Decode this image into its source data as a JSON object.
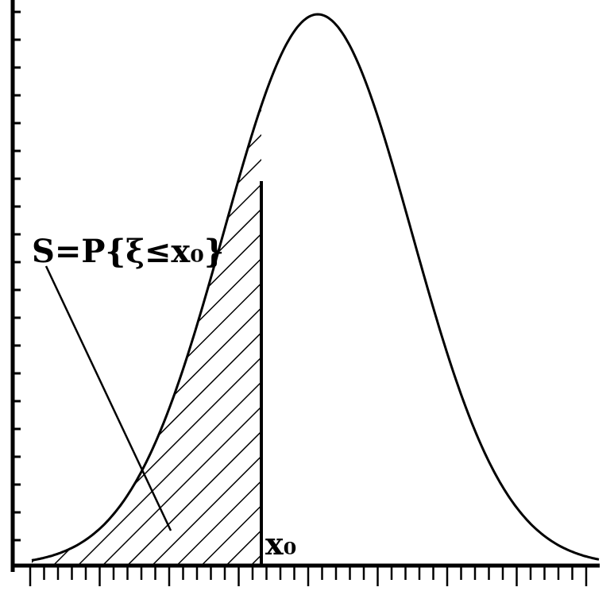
{
  "figure": {
    "area_label": "S=P{ξ≤x₀}",
    "x_marker_label": "x₀",
    "ink_color": "#000000",
    "background_color": "#ffffff"
  }
}
